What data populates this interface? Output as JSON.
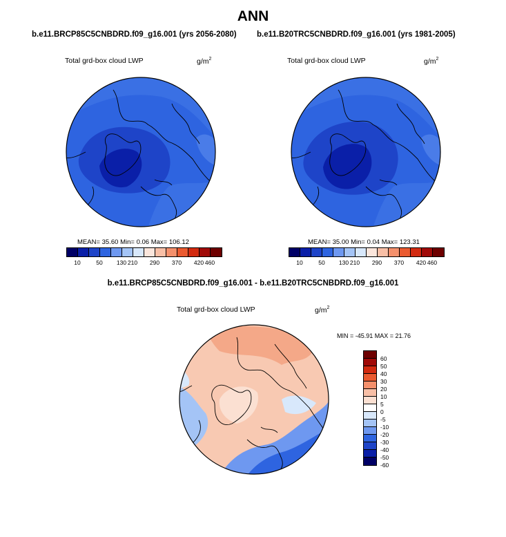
{
  "title": "ANN",
  "colors": {
    "abs_scale": [
      "#000066",
      "#0a1fa8",
      "#1e44c8",
      "#2e64e0",
      "#6e98f0",
      "#a4c4f6",
      "#d8e8fb",
      "#fbe6dc",
      "#f8bfa6",
      "#f4906c",
      "#ea5a30",
      "#d22a10",
      "#a00a08",
      "#6e0000"
    ],
    "diff_scale": [
      "#6e0000",
      "#a00a08",
      "#d22a10",
      "#ea5a30",
      "#f4906c",
      "#f8bfa6",
      "#fbe0d2",
      "#ffffff",
      "#d8e8fb",
      "#a4c4f6",
      "#6e98f0",
      "#2e64e0",
      "#1e44c8",
      "#0a1fa8",
      "#000066"
    ],
    "coast": "#000000"
  },
  "left_panel": {
    "case_title": "b.e11.BRCP85C5CNBDRD.f09_g16.001 (yrs 2056-2080)",
    "variable": "Total grd-box cloud LWP",
    "units_base": "g/m",
    "units_exp": "2",
    "mean_label": "MEAN=",
    "mean": "35.60",
    "min_label": "Min=",
    "min": "0.06",
    "max_label": "Max=",
    "max": "106.12"
  },
  "right_panel": {
    "case_title": "b.e11.B20TRC5CNBDRD.f09_g16.001 (yrs 1981-2005)",
    "variable": "Total grd-box cloud LWP",
    "units_base": "g/m",
    "units_exp": "2",
    "mean_label": "MEAN=",
    "mean": "35.00",
    "min_label": "Min=",
    "min": "0.04",
    "max_label": "Max=",
    "max": "123.31"
  },
  "abs_colorbar_ticks": [
    "10",
    "50",
    "130",
    "210",
    "290",
    "370",
    "420",
    "460"
  ],
  "diff_panel": {
    "title": "b.e11.BRCP85C5CNBDRD.f09_g16.001 - b.e11.B20TRC5CNBDRD.f09_g16.001",
    "variable": "Total grd-box cloud LWP",
    "units_base": "g/m",
    "units_exp": "2",
    "range_text": "MIN = -45.91 MAX =  21.76",
    "colorbar_ticks": [
      "60",
      "50",
      "40",
      "30",
      "20",
      "10",
      "5",
      "0",
      "-5",
      "-10",
      "-20",
      "-30",
      "-40",
      "-50",
      "-60"
    ]
  }
}
